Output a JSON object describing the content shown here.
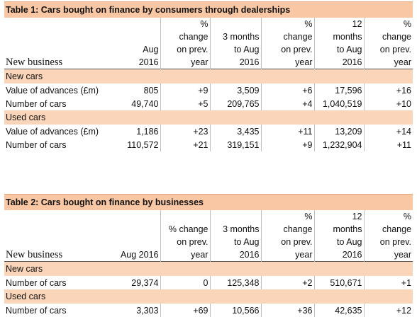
{
  "table1": {
    "title": "Table 1: Cars bought on finance by consumers through dealerships",
    "row_header": "New business",
    "columns": [
      [
        "Aug",
        "2016"
      ],
      [
        "%",
        "change",
        "on prev.",
        "year"
      ],
      [
        "3 months",
        "to Aug",
        "2016"
      ],
      [
        "%",
        "change",
        "on prev.",
        "year"
      ],
      [
        "12",
        "months",
        "to Aug",
        "2016"
      ],
      [
        "%",
        "change",
        "on prev.",
        "year"
      ]
    ],
    "sections": [
      {
        "name": "New cars",
        "rows": [
          {
            "label": "Value of advances (£m)",
            "values": [
              "805",
              "+9",
              "3,509",
              "+6",
              "17,596",
              "+16"
            ]
          },
          {
            "label": "Number of cars",
            "values": [
              "49,740",
              "+5",
              "209,765",
              "+4",
              "1,040,519",
              "+10"
            ]
          }
        ]
      },
      {
        "name": "Used cars",
        "rows": [
          {
            "label": "Value of advances (£m)",
            "values": [
              "1,186",
              "+23",
              "3,435",
              "+11",
              "13,209",
              "+14"
            ]
          },
          {
            "label": "Number of cars",
            "values": [
              "110,572",
              "+21",
              "319,151",
              "+9",
              "1,232,904",
              "+11"
            ]
          }
        ]
      }
    ]
  },
  "table2": {
    "title": "Table 2: Cars bought on finance by businesses",
    "row_header": "New business",
    "columns": [
      [
        "Aug 2016"
      ],
      [
        "% change",
        "on prev.",
        "year"
      ],
      [
        "3 months",
        "to Aug",
        "2016"
      ],
      [
        "%",
        "change",
        "on prev.",
        "year"
      ],
      [
        "12",
        "months",
        "to Aug",
        "2016"
      ],
      [
        "%",
        "change",
        "on prev.",
        "year"
      ]
    ],
    "sections": [
      {
        "name": "New cars",
        "rows": [
          {
            "label": "Number of cars",
            "values": [
              "29,374",
              "0",
              "125,348",
              "+2",
              "510,671",
              "+1"
            ]
          }
        ]
      },
      {
        "name": "Used cars",
        "rows": [
          {
            "label": "Number of cars",
            "values": [
              "3,303",
              "+69",
              "10,566",
              "+36",
              "42,635",
              "+12"
            ]
          }
        ]
      }
    ]
  }
}
